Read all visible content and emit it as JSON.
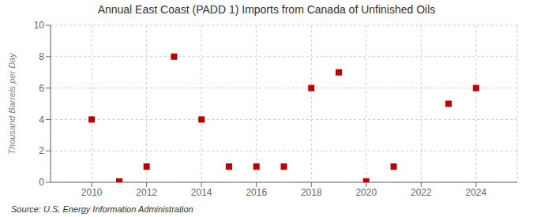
{
  "chart_data": {
    "type": "scatter",
    "title": "Annual East Coast (PADD 1) Imports from Canada of Unfinished Oils",
    "y_label": "Thousand Barrels per Day",
    "annotations": [
      "Source: U.S. Energy Information Administration"
    ],
    "x": [
      2010,
      2011,
      2012,
      2013,
      2014,
      2015,
      2016,
      2017,
      2018,
      2019,
      2020,
      2021,
      2023,
      2024
    ],
    "values": [
      4,
      0.05,
      1,
      8,
      4,
      1,
      1,
      1,
      6,
      7,
      0.05,
      1,
      5,
      6
    ],
    "xlim": [
      2008.5,
      2025.5
    ],
    "xticks": [
      2010,
      2012,
      2014,
      2016,
      2018,
      2020,
      2022,
      2024
    ],
    "ylim": [
      0,
      10
    ],
    "yticks": [
      0,
      2,
      4,
      6,
      8,
      10
    ],
    "color": "#c00000",
    "marker": "square",
    "grid": true
  }
}
